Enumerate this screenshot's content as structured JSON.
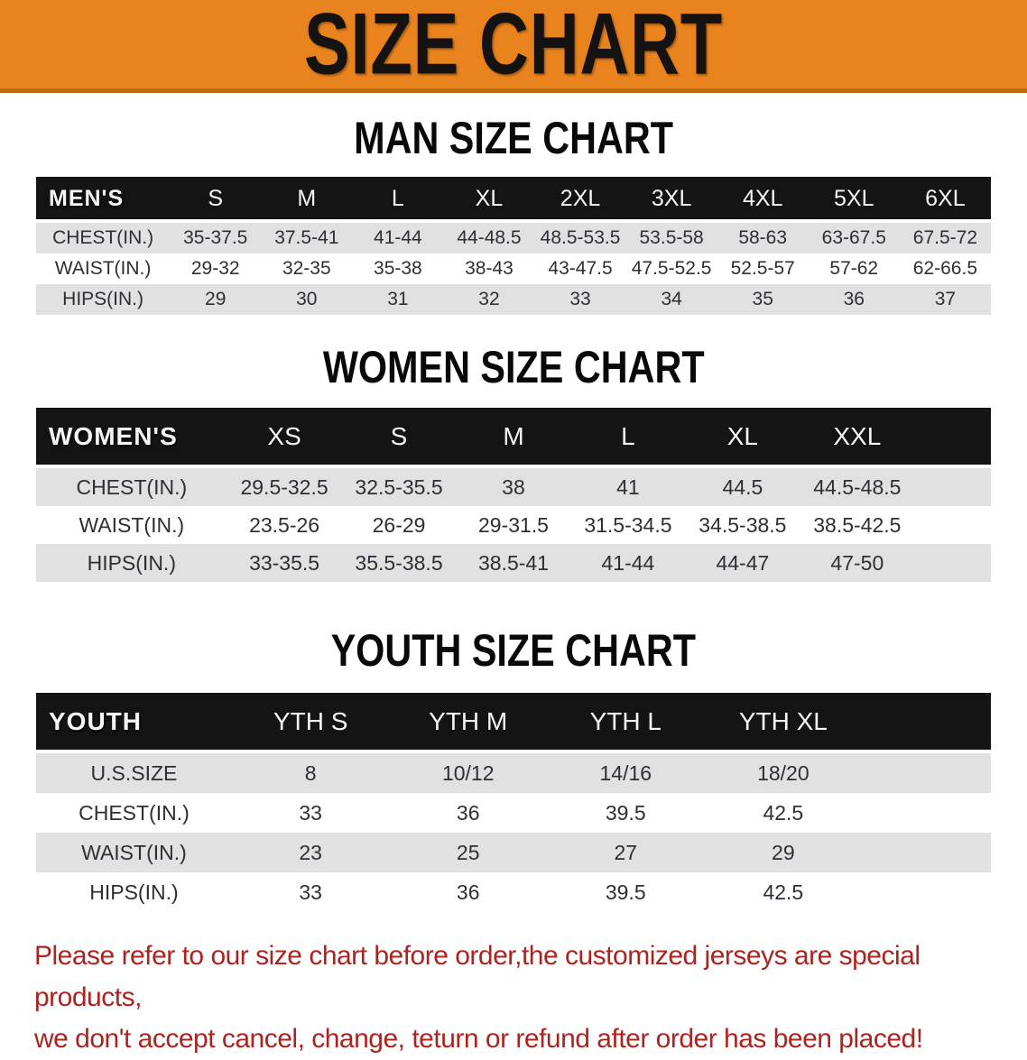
{
  "banner": {
    "title": "SIZE CHART"
  },
  "men": {
    "heading": "MAN SIZE CHART",
    "table": {
      "header": [
        "MEN'S",
        "S",
        "M",
        "L",
        "XL",
        "2XL",
        "3XL",
        "4XL",
        "5XL",
        "6XL"
      ],
      "rows": [
        {
          "label": "CHEST(IN.)",
          "values": [
            "35-37.5",
            "37.5-41",
            "41-44",
            "44-48.5",
            "48.5-53.5",
            "53.5-58",
            "58-63",
            "63-67.5",
            "67.5-72"
          ]
        },
        {
          "label": "WAIST(IN.)",
          "values": [
            "29-32",
            "32-35",
            "35-38",
            "38-43",
            "43-47.5",
            "47.5-52.5",
            "52.5-57",
            "57-62",
            "62-66.5"
          ]
        },
        {
          "label": "HIPS(IN.)",
          "values": [
            "29",
            "30",
            "31",
            "32",
            "33",
            "34",
            "35",
            "36",
            "37"
          ]
        }
      ]
    }
  },
  "women": {
    "heading": "WOMEN SIZE CHART",
    "table": {
      "header": [
        "WOMEN'S",
        "XS",
        "S",
        "M",
        "L",
        "XL",
        "XXL"
      ],
      "rows": [
        {
          "label": "CHEST(IN.)",
          "values": [
            "29.5-32.5",
            "32.5-35.5",
            "38",
            "41",
            "44.5",
            "44.5-48.5"
          ]
        },
        {
          "label": "WAIST(IN.)",
          "values": [
            "23.5-26",
            "26-29",
            "29-31.5",
            "31.5-34.5",
            "34.5-38.5",
            "38.5-42.5"
          ]
        },
        {
          "label": "HIPS(IN.)",
          "values": [
            "33-35.5",
            "35.5-38.5",
            "38.5-41",
            "41-44",
            "44-47",
            "47-50"
          ]
        }
      ]
    }
  },
  "youth": {
    "heading": "YOUTH SIZE CHART",
    "table": {
      "header": [
        "YOUTH",
        "YTH S",
        "YTH M",
        "YTH L",
        "YTH XL"
      ],
      "rows": [
        {
          "label": "U.S.SIZE",
          "values": [
            "8",
            "10/12",
            "14/16",
            "18/20"
          ]
        },
        {
          "label": "CHEST(IN.)",
          "values": [
            "33",
            "36",
            "39.5",
            "42.5"
          ]
        },
        {
          "label": "WAIST(IN.)",
          "values": [
            "23",
            "25",
            "27",
            "29"
          ]
        },
        {
          "label": "HIPS(IN.)",
          "values": [
            "33",
            "36",
            "39.5",
            "42.5"
          ]
        }
      ]
    }
  },
  "footer": {
    "line1": "Please refer to our size chart before order,the customized jerseys are special products,",
    "line2": "we don't accept cancel, change, teturn or refund after order has been placed!"
  },
  "colors": {
    "banner_orange": "#E8831E",
    "banner_border_orange": "#C06A10",
    "header_bar_black": "#151414",
    "row_stripe_gray": "#E2E1E1",
    "value_text": "#2E2E36",
    "footer_red": "#AC2420"
  }
}
